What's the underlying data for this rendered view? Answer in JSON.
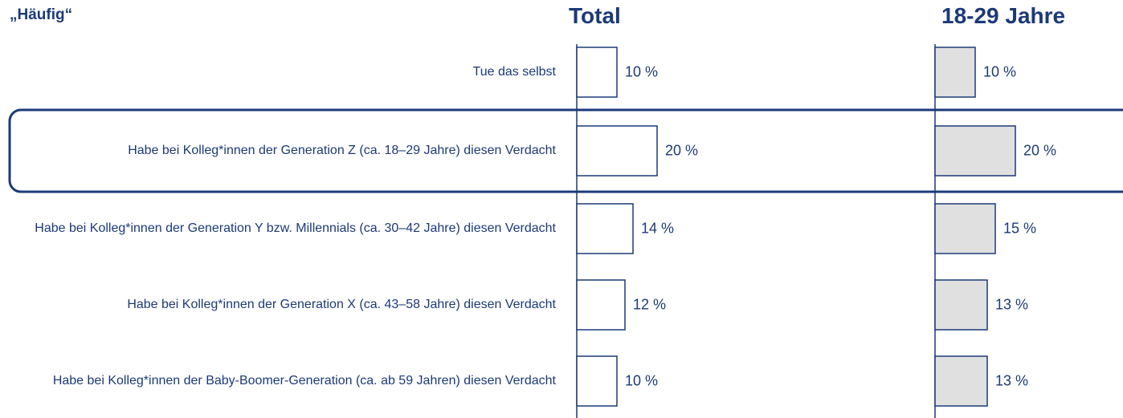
{
  "chart_data": {
    "type": "bar",
    "orientation": "horizontal",
    "title": "„Häufig“",
    "categories": [
      "Tue das selbst",
      "Habe bei Kolleg*innen der Generation Z (ca. 18–29 Jahre) diesen Verdacht",
      "Habe bei Kolleg*innen der Generation Y bzw. Millennials (ca. 30–42 Jahre) diesen Verdacht",
      "Habe bei Kolleg*innen der Generation X (ca. 43–58 Jahre) diesen Verdacht",
      "Habe bei Kolleg*innen der Baby-Boomer-Generation (ca. ab 59 Jahren) diesen Verdacht"
    ],
    "series": [
      {
        "name": "Total",
        "color": "#ffffff",
        "values": [
          10,
          20,
          14,
          12,
          10
        ],
        "value_labels": [
          "10 %",
          "20 %",
          "14 %",
          "12 %",
          "10 %"
        ]
      },
      {
        "name": "18-29 Jahre",
        "color": "#e0e0e0",
        "values": [
          10,
          20,
          15,
          13,
          13
        ],
        "value_labels": [
          "10 %",
          "20 %",
          "15 %",
          "13 %",
          "13 %"
        ]
      }
    ],
    "stroke": "#1c3a78",
    "highlight": 1
  }
}
